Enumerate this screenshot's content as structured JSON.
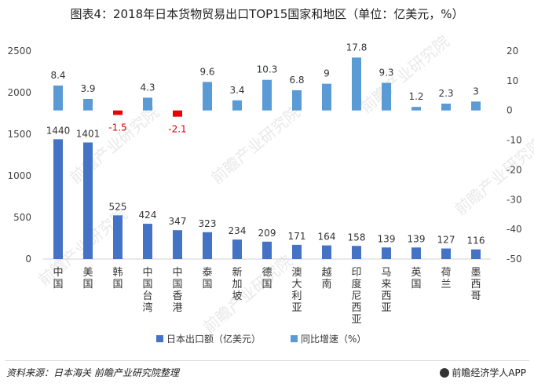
{
  "title": "图表4：2018年日本货物贸易出口TOP15国家和地区（单位：亿美元，%）",
  "source": "资料来源：日本海关 前瞻产业研究院整理",
  "brand": "前瞻经济学人APP",
  "watermark": "前瞻产业研究院",
  "chart_data": {
    "type": "bar",
    "categories": [
      "中国",
      "美国",
      "韩国",
      "中国台湾",
      "中国香港",
      "泰国",
      "新加坡",
      "德国",
      "澳大利亚",
      "越南",
      "印度尼西亚",
      "马来西亚",
      "英国",
      "荷兰",
      "墨西哥"
    ],
    "series": [
      {
        "name": "日本出口额（亿美元）",
        "axis": "left",
        "color": "#4472c4",
        "values": [
          1440,
          1401,
          525,
          424,
          347,
          323,
          234,
          209,
          171,
          164,
          158,
          139,
          139,
          127,
          116
        ]
      },
      {
        "name": "同比增速（%）",
        "axis": "right",
        "color": "#5b9bd5",
        "negative_color": "#ee0000",
        "values": [
          8.4,
          3.9,
          -1.5,
          4.3,
          -2.1,
          9.6,
          3.4,
          10.3,
          6.8,
          9,
          17.8,
          9.3,
          1.2,
          2.3,
          3
        ]
      }
    ],
    "left_axis": {
      "ylim": [
        0,
        2500
      ],
      "ticks": [
        "0",
        "500",
        "1000",
        "1500",
        "2000",
        "2500"
      ]
    },
    "right_axis": {
      "ylim": [
        -50,
        20
      ],
      "ticks": [
        "20",
        "10",
        "0",
        "-10",
        "-20",
        "-30",
        "-40",
        "-50"
      ]
    },
    "legend_position": "bottom",
    "grid": false
  }
}
